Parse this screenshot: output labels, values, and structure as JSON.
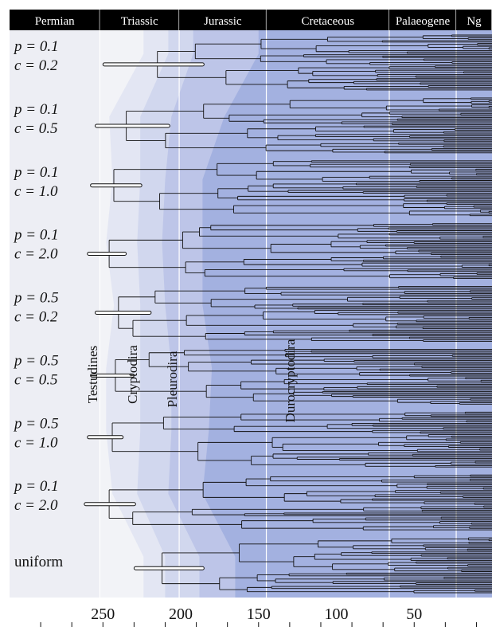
{
  "chart_data": {
    "type": "tree",
    "x_axis": {
      "units": "Ma",
      "reversed": true,
      "range": [
        0,
        310
      ],
      "tick_labels": [
        250,
        200,
        150,
        100,
        50
      ],
      "minor_ticks": [
        290,
        270,
        250,
        230,
        210,
        190,
        170,
        150,
        130,
        110,
        90,
        70,
        50,
        30,
        10
      ]
    },
    "periods": [
      {
        "name": "Permian",
        "start": 310,
        "end": 252
      },
      {
        "name": "Triassic",
        "start": 252,
        "end": 201
      },
      {
        "name": "Jurassic",
        "start": 201,
        "end": 145
      },
      {
        "name": "Cretaceous",
        "start": 145,
        "end": 66
      },
      {
        "name": "Palaeogene",
        "start": 66,
        "end": 23
      },
      {
        "name": "Ng",
        "start": 23,
        "end": 0
      }
    ],
    "clade_labels": [
      "Testudines",
      "Cryptodira",
      "Pleurodira",
      "Durocryptodira"
    ],
    "clade_shading": [
      {
        "clade": "Testudines",
        "color": "#dde2f1"
      },
      {
        "clade": "Cryptodira",
        "color": "#cbd2ec"
      },
      {
        "clade": "Pleurodira",
        "color": "#b5bfe6"
      },
      {
        "clade": "Durocryptodira",
        "color": "#9ba9de"
      }
    ],
    "trees": [
      {
        "line1": "p = 0.1",
        "line2": "c = 0.2",
        "root_age": 215,
        "ci": [
          250,
          185
        ]
      },
      {
        "line1": "p = 0.1",
        "line2": "c = 0.5",
        "root_age": 235,
        "ci": [
          255,
          207
        ]
      },
      {
        "line1": "p = 0.1",
        "line2": "c = 1.0",
        "root_age": 243,
        "ci": [
          258,
          225
        ]
      },
      {
        "line1": "p = 0.1",
        "line2": "c = 2.0",
        "root_age": 246,
        "ci": [
          260,
          235
        ]
      },
      {
        "line1": "p = 0.5",
        "line2": "c = 0.2",
        "root_age": 240,
        "ci": [
          255,
          219
        ]
      },
      {
        "line1": "p = 0.5",
        "line2": "c = 0.5",
        "root_age": 242,
        "ci": [
          258,
          230
        ]
      },
      {
        "line1": "p = 0.5",
        "line2": "c = 1.0",
        "root_age": 244,
        "ci": [
          260,
          237
        ]
      },
      {
        "line1": "p = 0.1",
        "line2": "c = 2.0",
        "root_age": 246,
        "ci": [
          262,
          229
        ]
      },
      {
        "line1": "uniform",
        "line2": "",
        "root_age": 212,
        "ci": [
          230,
          185
        ]
      }
    ]
  }
}
